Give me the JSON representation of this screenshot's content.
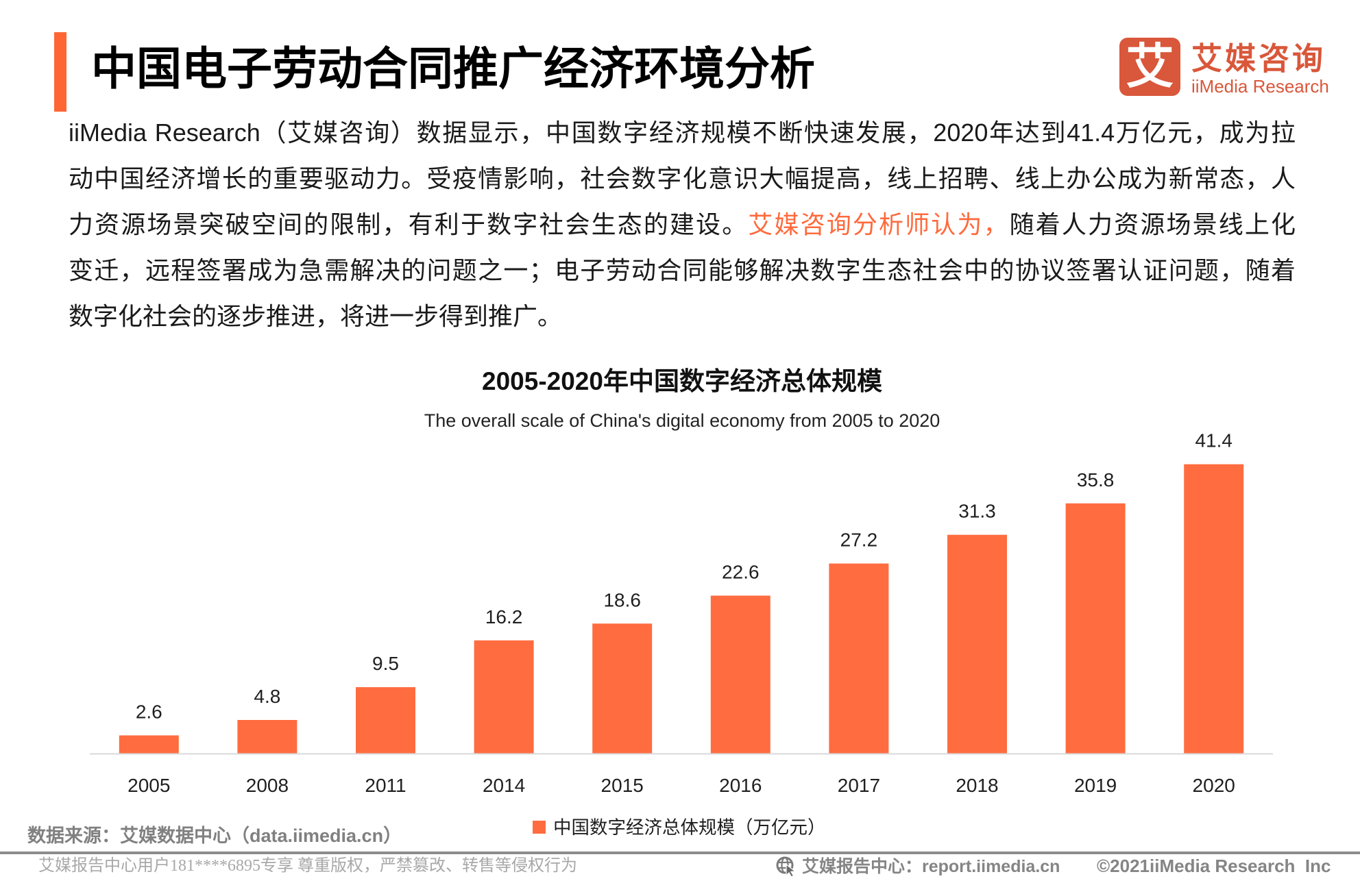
{
  "header": {
    "title": "中国电子劳动合同推广经济环境分析",
    "accent_color": "#FF6633"
  },
  "logo": {
    "mark": "艾",
    "name_cn": "艾媒咨询",
    "name_en": "iiMedia Research",
    "color": "#D9573A"
  },
  "intro": {
    "line1": "iiMedia Research（艾媒咨询）数据显示，中国数字经济规模不断快速发展，2020年达到41.4万亿元，成为拉",
    "line2": "动中国经济增长的重要驱动力。受疫情影响，社会数字化意识大幅提高，线上招聘、线上办公成为新常态，人",
    "line3_before": "力资源场景突破空间的限制，有利于数字社会生态的建设。",
    "line3_highlight": "艾媒咨询分析师认为，",
    "line3_after": "随着人力资源场景线上化",
    "line4": "变迁，远程签署成为急需解决的问题之一；电子劳动合同能够解决数字生态社会中的协议签署认证问题，随着",
    "line5": "数字化社会的逐步推进，将进一步得到推广。",
    "highlight_color": "#FF6A3C"
  },
  "chart_data": {
    "type": "bar",
    "title": "2005-2020年中国数字经济总体规模",
    "subtitle": "The overall scale of China's digital economy from 2005 to 2020",
    "categories": [
      "2005",
      "2008",
      "2011",
      "2014",
      "2015",
      "2016",
      "2017",
      "2018",
      "2019",
      "2020"
    ],
    "series": [
      {
        "name": "中国数字经济总体规模（万亿元）",
        "values": [
          2.6,
          4.8,
          9.5,
          16.2,
          18.6,
          22.6,
          27.2,
          31.3,
          35.8,
          41.4
        ],
        "color": "#FF6C40"
      }
    ],
    "xlabel": "",
    "ylabel": "",
    "unit": "万亿元",
    "ylim": [
      0,
      45
    ],
    "grid": false,
    "data_labels": true,
    "legend_position": "bottom-center"
  },
  "footer": {
    "source": "数据来源：艾媒数据中心（data.iimedia.cn）",
    "watermark": "艾媒报告中心用户181****6895专享 尊重版权，严禁篡改、转售等侵权行为",
    "site_icon": "globe-cursor-icon",
    "report_site": "艾媒报告中心：report.iimedia.cn",
    "copyright": "©2021iiMedia Research  Inc"
  }
}
